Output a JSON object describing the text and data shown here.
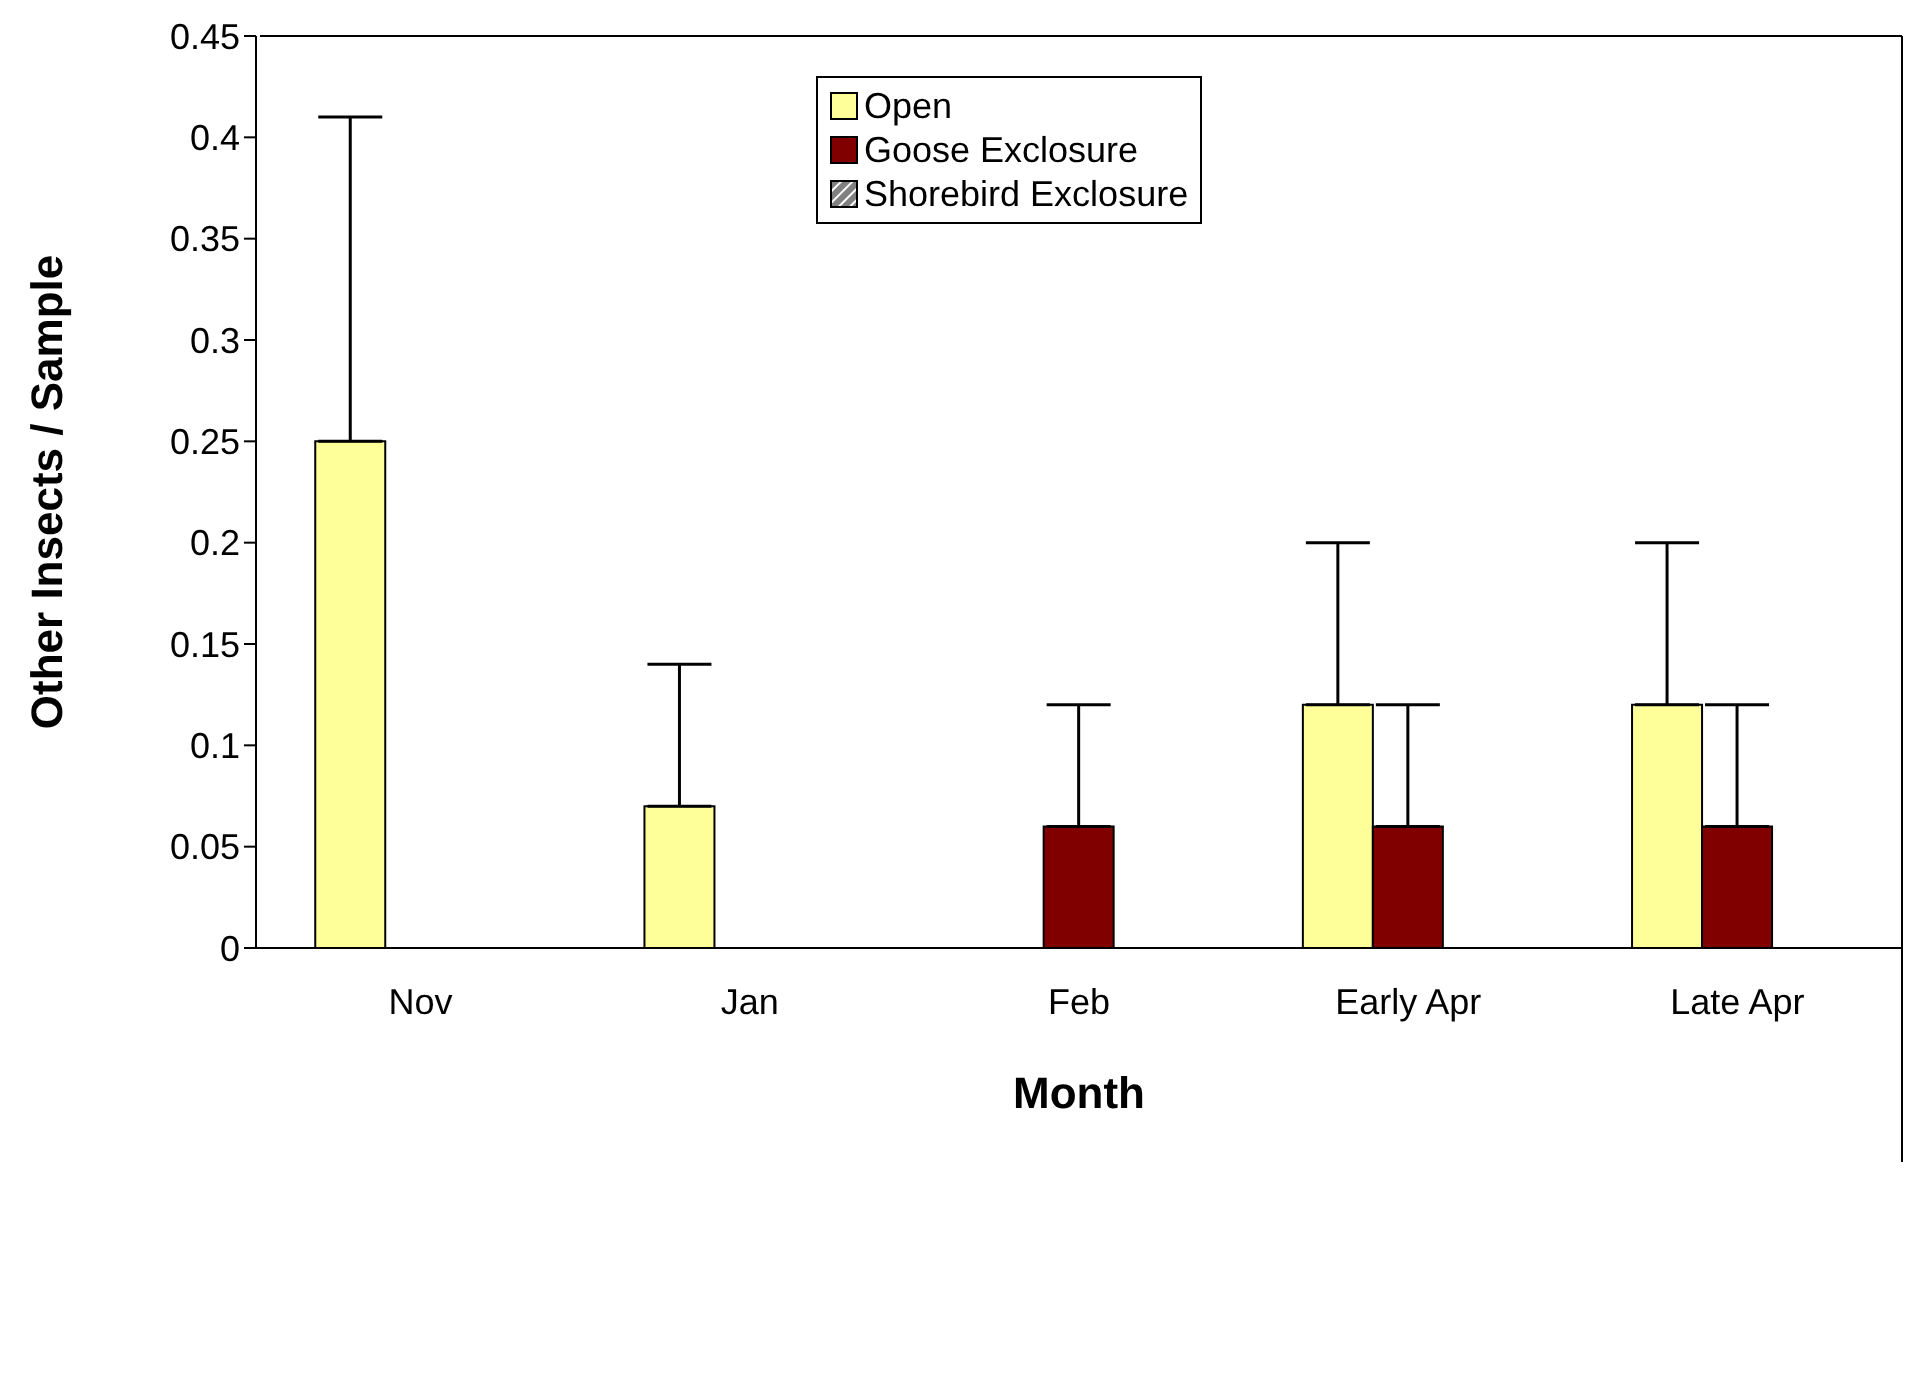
{
  "chart_data": {
    "type": "bar",
    "xlabel": "Month",
    "ylabel": "Other Insects / Sample",
    "categories": [
      "Nov",
      "Jan",
      "Feb",
      "Early Apr",
      "Late Apr"
    ],
    "series": [
      {
        "name": "Open",
        "color": "#ffff99",
        "values": [
          0.25,
          0.07,
          0,
          0.12,
          0.12
        ],
        "errors": [
          [
            0.25,
            0.41
          ],
          [
            0.07,
            0.14
          ],
          null,
          [
            0.12,
            0.2
          ],
          [
            0.12,
            0.2
          ]
        ]
      },
      {
        "name": "Goose Exclosure",
        "color": "#800000",
        "values": [
          0,
          0,
          0.06,
          0.06,
          0.06
        ],
        "errors": [
          null,
          null,
          [
            0.06,
            0.12
          ],
          [
            0.06,
            0.12
          ],
          [
            0.06,
            0.12
          ]
        ]
      },
      {
        "name": "Shorebird Exclosure",
        "color": "#808080",
        "values": [
          0,
          0,
          0,
          0,
          0
        ]
      }
    ],
    "ylim": [
      0,
      0.45
    ],
    "yticks": [
      0,
      0.05,
      0.1,
      0.15,
      0.2,
      0.25,
      0.3,
      0.35,
      0.4,
      0.45
    ],
    "grid": false,
    "legend": "top"
  }
}
